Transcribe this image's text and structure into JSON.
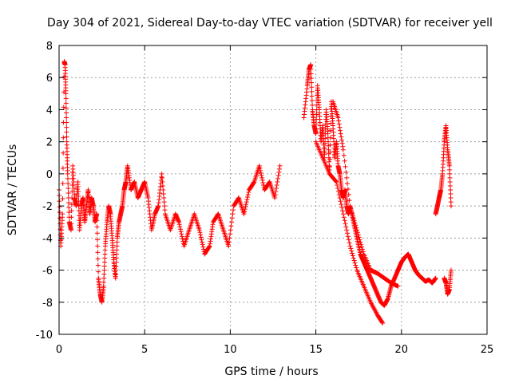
{
  "chart_data": {
    "type": "scatter",
    "title": "Day 304 of 2021, Sidereal Day-to-day VTEC variation (SDTVAR) for receiver yell",
    "xlabel": "GPS time / hours",
    "ylabel": "SDTVAR / TECUs",
    "xlim": [
      0,
      25
    ],
    "ylim": [
      -10,
      8
    ],
    "xticks": [
      0,
      5,
      10,
      15,
      20,
      25
    ],
    "yticks": [
      -10,
      -8,
      -6,
      -4,
      -2,
      0,
      2,
      4,
      6,
      8
    ],
    "xtick_labels": [
      "0",
      "5",
      "10",
      "15",
      "20",
      "25"
    ],
    "ytick_labels": [
      "-10",
      "-8",
      "-6",
      "-4",
      "-2",
      "0",
      "2",
      "4",
      "6",
      "8"
    ],
    "grid": true,
    "marker": "+",
    "color": "#ff0000",
    "series": [
      {
        "name": "SDTVAR",
        "segments": [
          {
            "x": [
              0.0,
              0.1,
              0.2,
              0.3,
              0.35,
              0.4,
              0.45,
              0.5,
              0.6,
              0.7,
              0.8,
              0.9,
              1.0,
              1.1,
              1.2,
              1.3,
              1.4,
              1.5,
              1.6,
              1.7,
              1.8,
              1.9,
              2.0,
              2.1,
              2.2,
              2.3,
              2.4,
              2.5,
              2.6,
              2.7,
              2.8,
              2.9,
              3.0,
              3.1,
              3.2,
              3.3,
              3.4,
              3.5,
              3.6,
              3.7,
              3.8,
              3.9,
              4.0,
              4.2,
              4.4,
              4.6,
              4.8,
              5.0,
              5.2,
              5.4,
              5.6,
              5.8,
              6.0,
              6.2,
              6.5,
              6.8,
              7.0,
              7.3,
              7.6,
              7.9,
              8.2,
              8.5,
              8.8,
              9.0,
              9.3,
              9.6,
              9.9,
              10.2,
              10.5,
              10.8,
              11.1,
              11.4,
              11.7,
              12.0,
              12.3,
              12.6,
              12.9
            ],
            "y": [
              -1.0,
              -4.5,
              -2.5,
              7.0,
              6.8,
              5.0,
              2.0,
              0.0,
              -3.0,
              -3.5,
              0.5,
              -1.5,
              -2.0,
              -0.5,
              -3.5,
              -2.0,
              -1.5,
              -3.0,
              -2.0,
              -1.0,
              -2.5,
              -1.5,
              -2.0,
              -3.0,
              -2.5,
              -6.5,
              -7.5,
              -8.0,
              -7.0,
              -4.5,
              -3.0,
              -2.0,
              -2.5,
              -4.0,
              -5.5,
              -6.5,
              -4.0,
              -3.0,
              -2.5,
              -2.0,
              -1.0,
              -0.5,
              0.5,
              -1.0,
              -0.5,
              -1.5,
              -1.0,
              -0.5,
              -1.5,
              -3.5,
              -2.5,
              -2.0,
              0.0,
              -2.5,
              -3.5,
              -2.5,
              -3.0,
              -4.5,
              -3.5,
              -2.5,
              -3.5,
              -5.0,
              -4.5,
              -3.0,
              -2.5,
              -3.5,
              -4.5,
              -2.0,
              -1.5,
              -2.5,
              -1.0,
              -0.5,
              0.5,
              -1.0,
              -0.5,
              -1.5,
              0.5
            ]
          },
          {
            "x": [
              14.3,
              14.5,
              14.6,
              14.7,
              14.8,
              14.9,
              15.0,
              15.1,
              15.2,
              15.3,
              15.4,
              15.5,
              15.6,
              15.7,
              15.8,
              15.9,
              16.0,
              16.1,
              16.2,
              16.3,
              16.4,
              16.5,
              16.6,
              16.7,
              16.8,
              16.9,
              17.0,
              17.2,
              17.4,
              17.6,
              17.8,
              18.0,
              18.2,
              18.4,
              18.6,
              18.8,
              19.0,
              19.2,
              19.4,
              19.6,
              19.8,
              20.0,
              20.2,
              20.4,
              20.6,
              20.8,
              21.0,
              21.2,
              21.4,
              21.6,
              21.8,
              22.0
            ],
            "y": [
              3.5,
              5.5,
              6.5,
              6.8,
              4.0,
              3.0,
              2.5,
              5.5,
              4.0,
              2.0,
              3.0,
              1.0,
              4.0,
              2.5,
              0.0,
              4.5,
              3.0,
              1.0,
              2.0,
              0.5,
              0.0,
              -1.0,
              -1.5,
              -1.0,
              -2.0,
              -2.5,
              -2.0,
              -3.0,
              -4.0,
              -5.0,
              -5.5,
              -6.0,
              -6.5,
              -7.0,
              -7.5,
              -8.0,
              -8.2,
              -7.8,
              -7.0,
              -6.5,
              -6.0,
              -5.5,
              -5.2,
              -5.0,
              -5.5,
              -6.0,
              -6.3,
              -6.5,
              -6.7,
              -6.6,
              -6.8,
              -6.5
            ]
          },
          {
            "x": [
              15.0,
              15.4,
              15.8,
              16.2,
              16.6,
              17.0,
              17.4,
              17.8,
              18.2,
              18.6,
              18.9
            ],
            "y": [
              2.0,
              1.0,
              0.0,
              -0.5,
              -2.5,
              -4.5,
              -6.0,
              -7.0,
              -8.0,
              -8.8,
              -9.3
            ]
          },
          {
            "x": [
              16.0,
              16.3,
              16.6,
              17.0,
              17.4,
              17.8,
              18.2,
              18.6,
              19.0,
              19.4,
              19.8
            ],
            "y": [
              4.5,
              3.5,
              1.5,
              -2.0,
              -3.5,
              -5.0,
              -6.0,
              -6.2,
              -6.5,
              -6.8,
              -7.0
            ]
          },
          {
            "x": [
              22.0,
              22.1,
              22.2,
              22.3,
              22.4,
              22.5,
              22.6,
              22.7,
              22.8,
              22.9
            ],
            "y": [
              -2.5,
              -2.0,
              -1.5,
              -1.0,
              0.0,
              2.0,
              3.0,
              1.5,
              0.5,
              -2.0
            ]
          },
          {
            "x": [
              22.5,
              22.6,
              22.7,
              22.8,
              22.9
            ],
            "y": [
              -6.5,
              -6.8,
              -7.5,
              -7.2,
              -6.0
            ]
          }
        ]
      }
    ]
  }
}
